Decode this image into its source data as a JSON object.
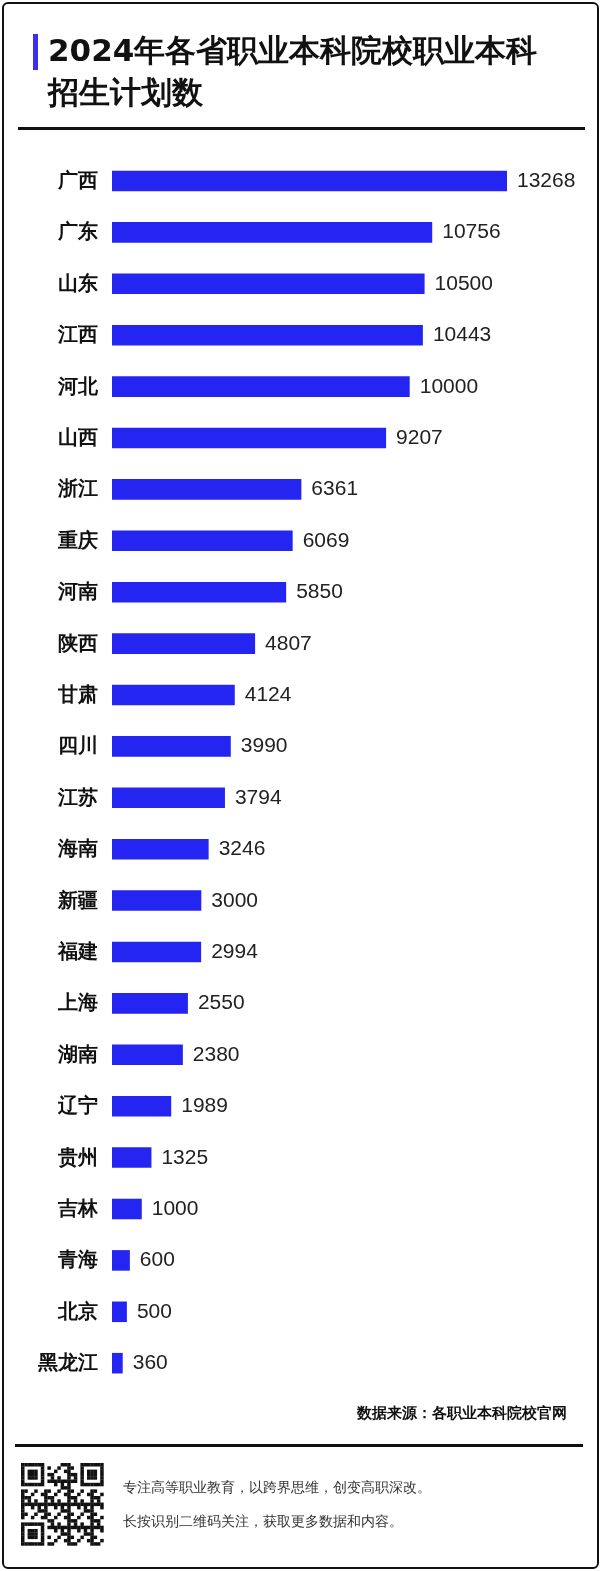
{
  "chart_data": {
    "type": "bar",
    "orientation": "horizontal",
    "title": "2024年各省职业本科院校职业本科招生计划数",
    "categories": [
      "广西",
      "广东",
      "山东",
      "江西",
      "河北",
      "山西",
      "浙江",
      "重庆",
      "河南",
      "陕西",
      "甘肃",
      "四川",
      "江苏",
      "海南",
      "新疆",
      "福建",
      "上海",
      "湖南",
      "辽宁",
      "贵州",
      "吉林",
      "青海",
      "北京",
      "黑龙江"
    ],
    "values": [
      13268,
      10756,
      10500,
      10443,
      10000,
      9207,
      6361,
      6069,
      5850,
      4807,
      4124,
      3990,
      3794,
      3246,
      3000,
      2994,
      2550,
      2380,
      1989,
      1325,
      1000,
      600,
      500,
      360
    ],
    "color": "#2525f2",
    "data_labels": true,
    "tick_labels": "y",
    "annotations": [
      "数据来源：各职业本科院校官网",
      "专注高等职业教育，以跨界思维，创变高职深改。",
      "长按识别二维码关注，获取更多数据和内容。"
    ]
  }
}
